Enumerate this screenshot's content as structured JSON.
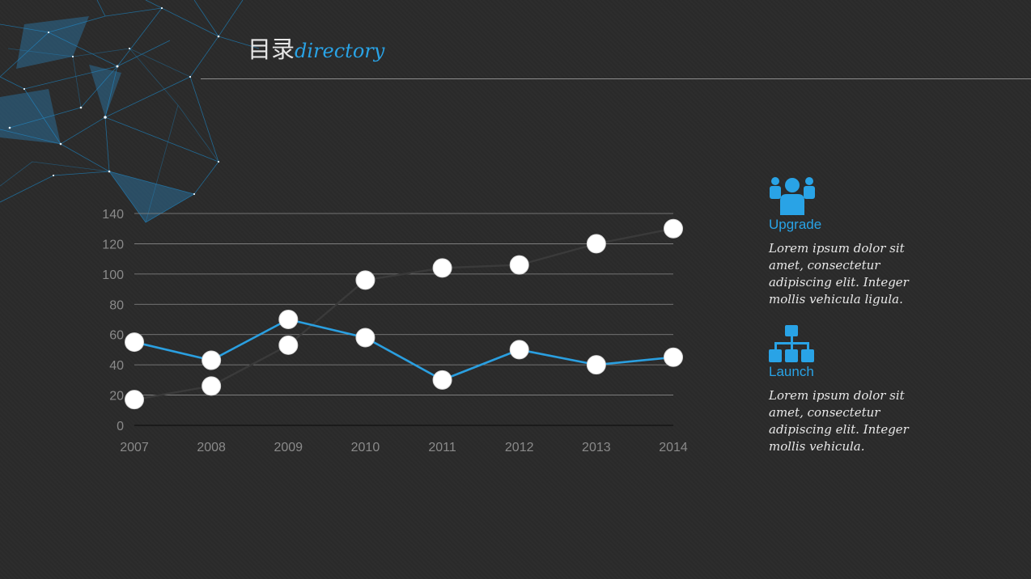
{
  "header": {
    "title_cn": "目录",
    "title_en": "directory"
  },
  "chart_data": {
    "type": "line",
    "categories": [
      "2007",
      "2008",
      "2009",
      "2010",
      "2011",
      "2012",
      "2013",
      "2014"
    ],
    "ylim": [
      0,
      140
    ],
    "yticks": [
      "0",
      "20",
      "40",
      "60",
      "80",
      "100",
      "120",
      "140"
    ],
    "series": [
      {
        "values": [
          55,
          43,
          70,
          58,
          30,
          50,
          40,
          45
        ],
        "color": "#2a9fe0"
      },
      {
        "values": [
          17,
          26,
          53,
          96,
          104,
          106,
          120,
          130
        ],
        "color": "#3a3a3a"
      }
    ]
  },
  "panels": [
    {
      "icon": "team-icon",
      "title": "Upgrade",
      "body": "Lorem ipsum dolor sit amet, consectetur adipiscing elit. Integer mollis vehicula ligula."
    },
    {
      "icon": "hierarchy-icon",
      "title": "Launch",
      "body": "Lorem ipsum dolor sit amet, consectetur adipiscing elit. Integer mollis vehicula."
    }
  ],
  "colors": {
    "accent": "#29a3e6",
    "background": "#2b2b2b"
  }
}
